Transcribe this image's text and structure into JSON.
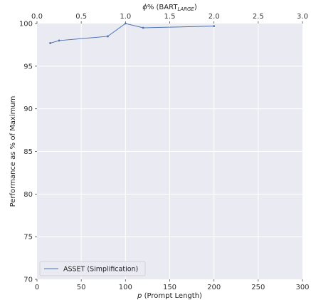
{
  "chart_data": {
    "type": "line",
    "x": [
      15,
      25,
      80,
      100,
      120,
      200
    ],
    "series": [
      {
        "name": "ASSET (Simplification)",
        "color": "#4c72b0",
        "values": [
          97.7,
          98.0,
          98.5,
          100.0,
          99.5,
          99.7
        ]
      }
    ],
    "xlabel_italic": "p",
    "xlabel_rest": " (Prompt Length)",
    "ylabel": "Performance as % of Maximum",
    "top_xlabel_phi": "ϕ",
    "top_xlabel_main": "% (BART",
    "top_xlabel_sub": "LARGE",
    "top_xlabel_close": ")",
    "xlim": [
      0,
      300
    ],
    "ylim": [
      70,
      100
    ],
    "x_ticks": [
      0,
      50,
      100,
      150,
      200,
      250,
      300
    ],
    "x_tick_labels": [
      "0",
      "50",
      "100",
      "150",
      "200",
      "250",
      "300"
    ],
    "y_ticks": [
      70,
      75,
      80,
      85,
      90,
      95,
      100
    ],
    "y_tick_labels": [
      "70",
      "75",
      "80",
      "85",
      "90",
      "95",
      "100"
    ],
    "top_ticks": [
      0.0,
      0.5,
      1.0,
      1.5,
      2.0,
      2.5,
      3.0
    ],
    "top_tick_labels": [
      "0.0",
      "0.5",
      "1.0",
      "1.5",
      "2.0",
      "2.5",
      "3.0"
    ],
    "top_lim": [
      0,
      3
    ],
    "grid": true,
    "legend_position": "lower-left",
    "background_color": "#eaeaf2"
  }
}
